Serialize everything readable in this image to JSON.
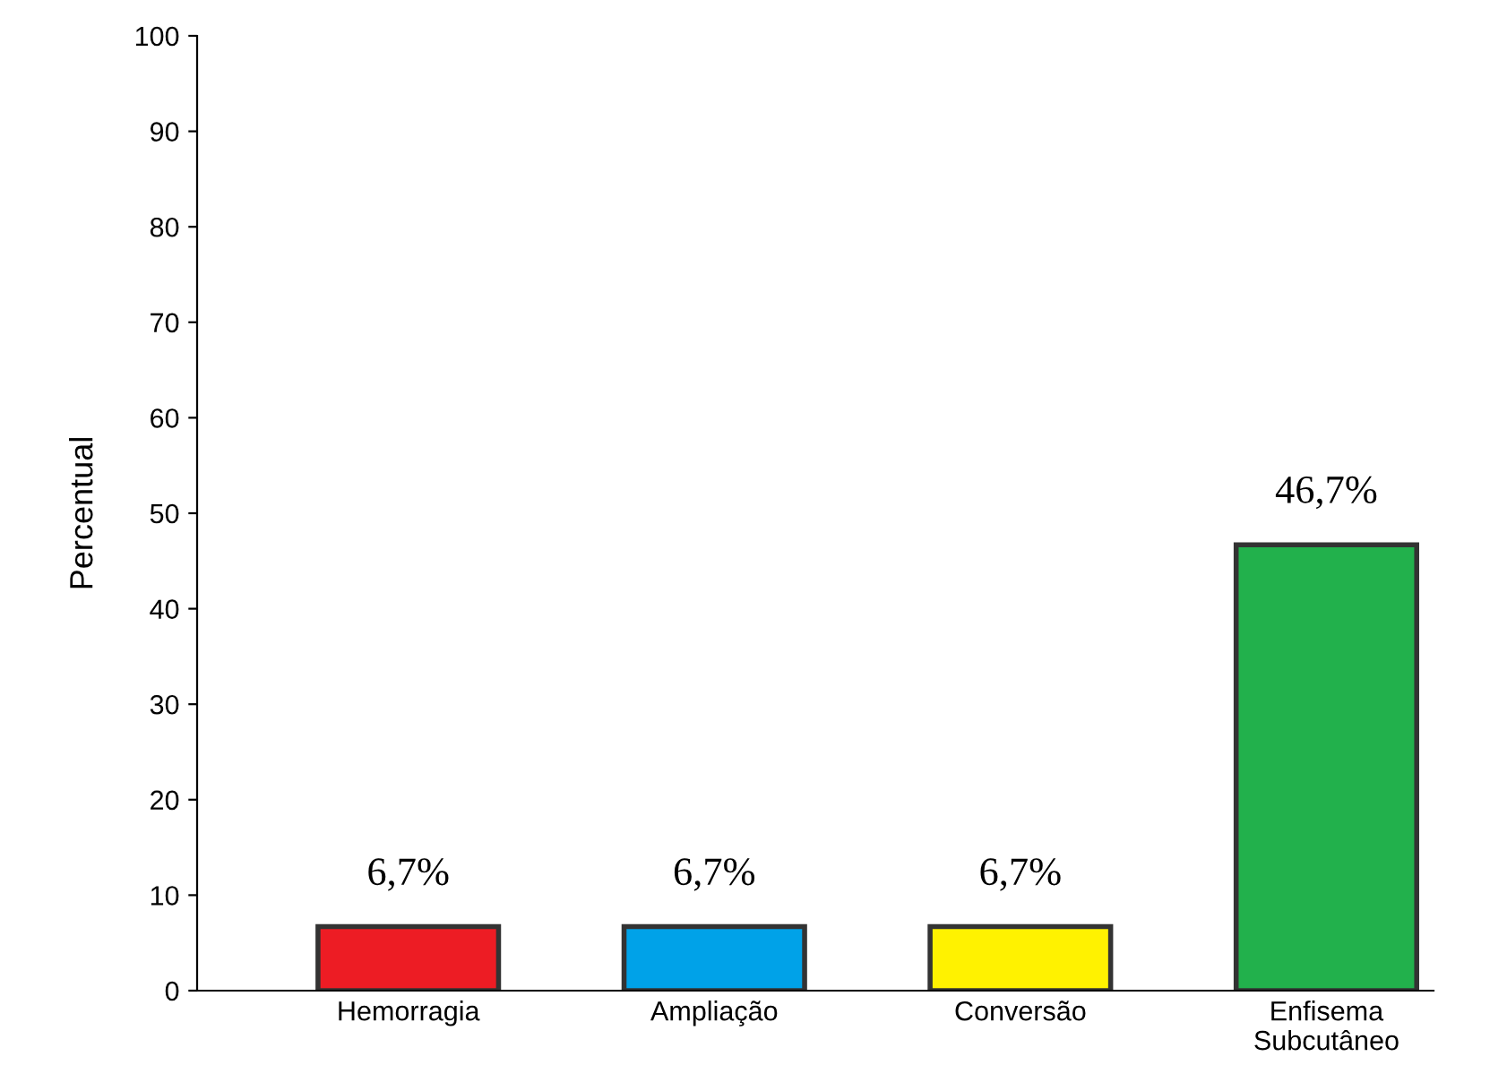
{
  "chart_data": {
    "type": "bar",
    "ylabel": "Percentual",
    "categories": [
      "Hemorragia",
      "Ampliação",
      "Conversão",
      "Enfisema\nSubcutâneo"
    ],
    "values": [
      6.7,
      6.7,
      6.7,
      46.7
    ],
    "colors": [
      "#ed1c24",
      "#00a2e8",
      "#fff200",
      "#22b14c"
    ],
    "value_labels": [
      "6,7%",
      "6,7%",
      "6,7%",
      "46,7%"
    ],
    "ylim": [
      0,
      100
    ],
    "yticks": [
      0,
      10,
      20,
      30,
      40,
      50,
      60,
      70,
      80,
      90,
      100
    ],
    "grid": false,
    "legend": false
  }
}
